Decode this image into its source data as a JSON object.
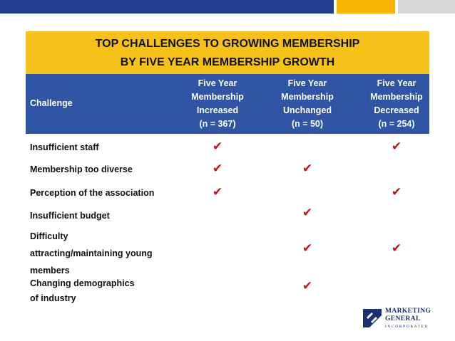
{
  "colors": {
    "bar_blue": "#23408e",
    "bar_yellow": "#f4b400",
    "bar_gray": "#d8d8d8",
    "title_bg": "#f6c21a",
    "header_bg": "#2f55a4",
    "check": "#c1121f"
  },
  "title": {
    "line1": "TOP CHALLENGES TO GROWING MEMBERSHIP",
    "line2": "BY FIVE YEAR MEMBERSHIP GROWTH"
  },
  "header": {
    "challenge": "Challenge",
    "columns": [
      {
        "l1": "Five Year",
        "l2": "Membership",
        "l3": "Increased",
        "l4": "(n = 367)"
      },
      {
        "l1": "Five Year",
        "l2": "Membership",
        "l3": "Unchanged",
        "l4": "(n = 50)"
      },
      {
        "l1": "Five Year",
        "l2": "Membership",
        "l3": "Decreased",
        "l4": "(n = 254)"
      }
    ]
  },
  "check_symbol": "✔",
  "rows": [
    {
      "label": "Insufficient staff",
      "checks": [
        true,
        false,
        true
      ]
    },
    {
      "label": "Membership too diverse",
      "checks": [
        true,
        true,
        false
      ]
    },
    {
      "label": "Perception of the association",
      "checks": [
        true,
        false,
        true
      ]
    },
    {
      "label": "Insufficient budget",
      "checks": [
        false,
        true,
        false
      ]
    },
    {
      "l1": "Difficulty",
      "l2": "attracting/maintaining young",
      "l3": "members",
      "checks": [
        false,
        true,
        true
      ]
    },
    {
      "l1": "Changing demographics",
      "l2": "of industry",
      "checks": [
        false,
        true,
        false
      ]
    }
  ],
  "logo": {
    "line1": "MARKETING",
    "line2": "GENERAL",
    "sub": "INCORPORATED",
    "icon": "marketing-general-logo-mark"
  }
}
